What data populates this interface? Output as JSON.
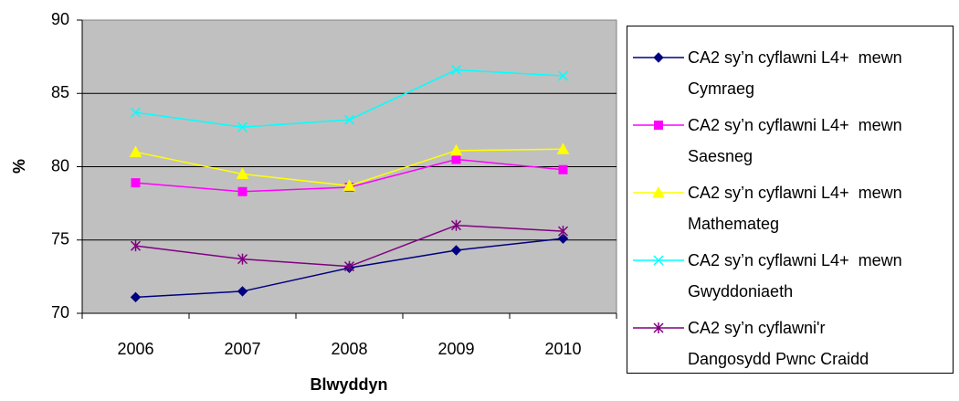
{
  "chart_data": {
    "type": "line",
    "x_label": "Blwyddyn",
    "y_label": "%",
    "categories": [
      "2006",
      "2007",
      "2008",
      "2009",
      "2010"
    ],
    "ylim": [
      70,
      90
    ],
    "yticks": [
      70,
      75,
      80,
      85,
      90
    ],
    "grid": true,
    "legend": "right",
    "series": [
      {
        "name": "CA2 sy’n cyflawni L4+  mewn Cymraeg",
        "color": "#000080",
        "marker": "diamond",
        "values": [
          71.1,
          71.5,
          73.1,
          74.3,
          75.1
        ]
      },
      {
        "name": "CA2 sy’n cyflawni L4+  mewn Saesneg",
        "color": "#ff00ff",
        "marker": "square",
        "values": [
          78.9,
          78.3,
          78.6,
          80.5,
          79.8
        ]
      },
      {
        "name": "CA2 sy’n cyflawni L4+  mewn Mathemateg",
        "color": "#ffff00",
        "marker": "triangle",
        "values": [
          81.0,
          79.5,
          78.7,
          81.1,
          81.2
        ]
      },
      {
        "name": "CA2 sy’n cyflawni L4+  mewn Gwyddoniaeth",
        "color": "#00ffff",
        "marker": "x",
        "values": [
          83.7,
          82.7,
          83.2,
          86.6,
          86.2
        ]
      },
      {
        "name": "CA2 sy’n cyflawni'r Dangosydd Pwnc Craidd",
        "color": "#800080",
        "marker": "asterisk",
        "values": [
          74.6,
          73.7,
          73.2,
          76.0,
          75.6
        ]
      }
    ]
  }
}
